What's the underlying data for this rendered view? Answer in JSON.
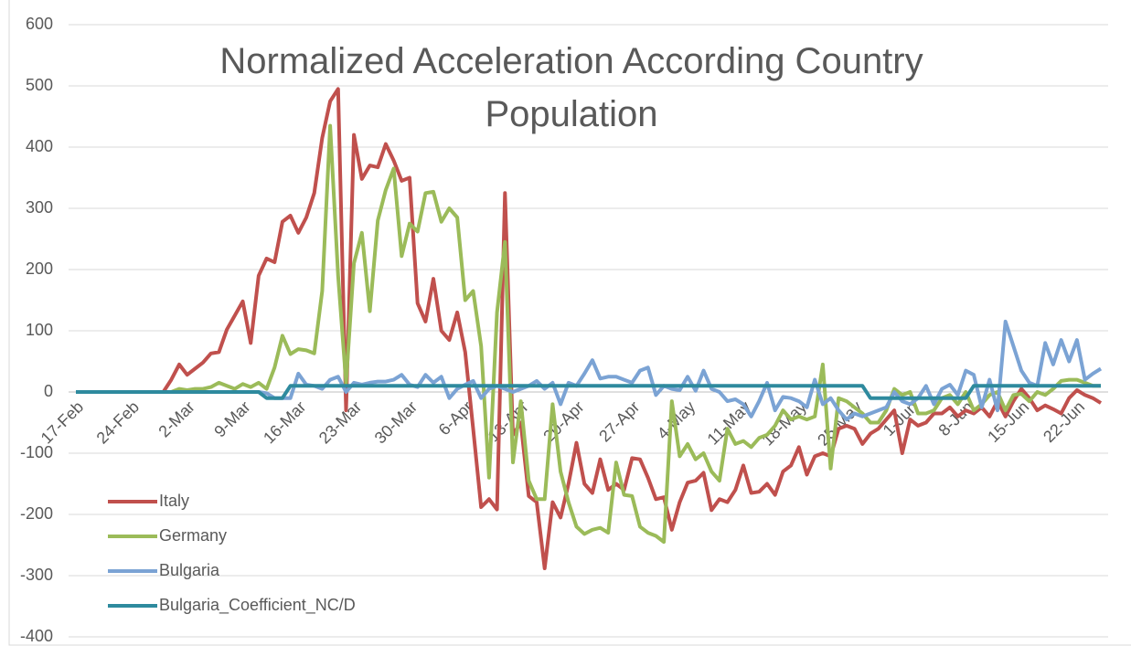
{
  "chart_data": {
    "type": "line",
    "title": "Normalized Acceleration According Country Population",
    "categories": [
      "17-Feb",
      null,
      null,
      null,
      null,
      null,
      null,
      "24-Feb",
      null,
      null,
      null,
      null,
      null,
      null,
      "2-Mar",
      null,
      null,
      null,
      null,
      null,
      null,
      "9-Mar",
      null,
      null,
      null,
      null,
      null,
      null,
      "16-Mar",
      null,
      null,
      null,
      null,
      null,
      null,
      "23-Mar",
      null,
      null,
      null,
      null,
      null,
      null,
      "30-Mar",
      null,
      null,
      null,
      null,
      null,
      null,
      "6-Apr",
      null,
      null,
      null,
      null,
      null,
      null,
      "13-Apr",
      null,
      null,
      null,
      null,
      null,
      null,
      "20-Apr",
      null,
      null,
      null,
      null,
      null,
      null,
      "27-Apr",
      null,
      null,
      null,
      null,
      null,
      null,
      "4-May",
      null,
      null,
      null,
      null,
      null,
      null,
      "11-May",
      null,
      null,
      null,
      null,
      null,
      null,
      "18-May",
      null,
      null,
      null,
      null,
      null,
      null,
      "25-May",
      null,
      null,
      null,
      null,
      null,
      null,
      "1-Jun",
      null,
      null,
      null,
      null,
      null,
      null,
      "8-Jun",
      null,
      null,
      null,
      null,
      null,
      null,
      "15-Jun",
      null,
      null,
      null,
      null,
      null,
      null,
      "22-Jun",
      null,
      null,
      null
    ],
    "series": [
      {
        "name": "Italy",
        "color": "#c0504d",
        "values": [
          0,
          0,
          0,
          0,
          0,
          0,
          0,
          0,
          0,
          0,
          0,
          0,
          20,
          45,
          28,
          38,
          48,
          63,
          65,
          102,
          125,
          148,
          80,
          190,
          218,
          212,
          278,
          288,
          260,
          285,
          325,
          415,
          475,
          495,
          -30,
          420,
          348,
          370,
          367,
          405,
          378,
          345,
          350,
          145,
          115,
          185,
          100,
          85,
          130,
          65,
          -60,
          -188,
          -175,
          -192,
          325,
          -70,
          -50,
          -170,
          -180,
          -288,
          -180,
          -205,
          -150,
          -83,
          -150,
          -165,
          -110,
          -160,
          -150,
          -160,
          -108,
          -110,
          -140,
          -175,
          -172,
          -225,
          -180,
          -148,
          -145,
          -132,
          -193,
          -175,
          -180,
          -160,
          -120,
          -165,
          -163,
          -150,
          -168,
          -130,
          -120,
          -90,
          -135,
          -105,
          -100,
          -105,
          -60,
          -55,
          -60,
          -85,
          -68,
          -60,
          -45,
          -30,
          -100,
          -45,
          -55,
          -50,
          -35,
          -35,
          -25,
          -40,
          -30,
          -35,
          -25,
          -40,
          -15,
          -40,
          -15,
          5,
          -10,
          -30,
          -22,
          -28,
          -35,
          -10,
          3,
          -5,
          -10,
          -18
        ]
      },
      {
        "name": "Germany",
        "color": "#9bbb59",
        "values": [
          0,
          0,
          0,
          0,
          0,
          0,
          0,
          0,
          0,
          0,
          0,
          0,
          0,
          5,
          3,
          5,
          5,
          8,
          15,
          10,
          5,
          13,
          8,
          15,
          5,
          40,
          92,
          62,
          70,
          68,
          63,
          165,
          435,
          190,
          15,
          210,
          260,
          132,
          280,
          330,
          365,
          222,
          275,
          262,
          325,
          327,
          278,
          300,
          285,
          150,
          165,
          75,
          -140,
          130,
          245,
          -115,
          -15,
          -145,
          -175,
          -175,
          -20,
          -130,
          -180,
          -220,
          -232,
          -225,
          -222,
          -230,
          -115,
          -168,
          -170,
          -220,
          -230,
          -235,
          -245,
          -15,
          -105,
          -85,
          -110,
          -100,
          -130,
          -145,
          -60,
          -85,
          -80,
          -90,
          -75,
          -70,
          -55,
          -30,
          -45,
          -40,
          -45,
          -40,
          45,
          -125,
          -10,
          -15,
          -25,
          -35,
          -50,
          -50,
          -30,
          5,
          -5,
          0,
          -35,
          -35,
          -30,
          -10,
          -5,
          -20,
          0,
          -30,
          -20,
          -5,
          0,
          -30,
          -5,
          -3,
          -15,
          0,
          -5,
          5,
          18,
          20,
          20,
          15,
          10,
          10
        ]
      },
      {
        "name": "Bulgaria",
        "color": "#7ba3d4",
        "values": [
          0,
          0,
          0,
          0,
          0,
          0,
          0,
          0,
          0,
          0,
          0,
          0,
          0,
          0,
          0,
          0,
          0,
          0,
          0,
          0,
          0,
          0,
          0,
          0,
          -2,
          -10,
          -10,
          -10,
          30,
          12,
          10,
          5,
          20,
          25,
          0,
          15,
          12,
          15,
          17,
          17,
          20,
          28,
          12,
          8,
          28,
          15,
          25,
          -10,
          5,
          12,
          18,
          -10,
          5,
          10,
          5,
          0,
          5,
          10,
          18,
          5,
          15,
          -20,
          15,
          10,
          30,
          52,
          22,
          25,
          25,
          20,
          15,
          35,
          40,
          -5,
          10,
          5,
          3,
          25,
          2,
          35,
          5,
          0,
          -15,
          -12,
          -20,
          -40,
          -15,
          15,
          -30,
          -8,
          -10,
          -15,
          -25,
          20,
          -20,
          -10,
          -30,
          -45,
          -35,
          -40,
          -35,
          -30,
          -25,
          0,
          -15,
          -20,
          -10,
          10,
          -20,
          5,
          12,
          -5,
          35,
          28,
          -25,
          20,
          -30,
          115,
          75,
          35,
          15,
          10,
          80,
          45,
          85,
          50,
          85,
          20,
          30,
          38
        ]
      },
      {
        "name": "Bulgaria_Coefficient_NC/D",
        "color": "#2e8a9e",
        "values": [
          0,
          0,
          0,
          0,
          0,
          0,
          0,
          0,
          0,
          0,
          0,
          0,
          0,
          0,
          0,
          0,
          0,
          0,
          0,
          0,
          0,
          0,
          0,
          0,
          -10,
          -10,
          -10,
          10,
          10,
          10,
          10,
          10,
          10,
          10,
          10,
          10,
          10,
          10,
          10,
          10,
          10,
          10,
          10,
          10,
          10,
          10,
          10,
          10,
          10,
          10,
          10,
          10,
          10,
          10,
          10,
          10,
          10,
          10,
          10,
          10,
          10,
          10,
          10,
          10,
          10,
          10,
          10,
          10,
          10,
          10,
          10,
          10,
          10,
          10,
          10,
          10,
          10,
          10,
          10,
          10,
          10,
          10,
          10,
          10,
          10,
          10,
          10,
          10,
          10,
          10,
          10,
          10,
          10,
          10,
          10,
          10,
          10,
          10,
          10,
          10,
          -10,
          -10,
          -10,
          -10,
          -10,
          -10,
          -10,
          -10,
          -10,
          -10,
          -10,
          -10,
          -10,
          10,
          10,
          10,
          10,
          10,
          10,
          10,
          10,
          10,
          10,
          10,
          10,
          10,
          10,
          10,
          10,
          10
        ]
      }
    ],
    "ylim": [
      -400,
      600
    ],
    "yticks": [
      -400,
      -300,
      -200,
      -100,
      0,
      100,
      200,
      300,
      400,
      500,
      600
    ],
    "grid": true
  }
}
